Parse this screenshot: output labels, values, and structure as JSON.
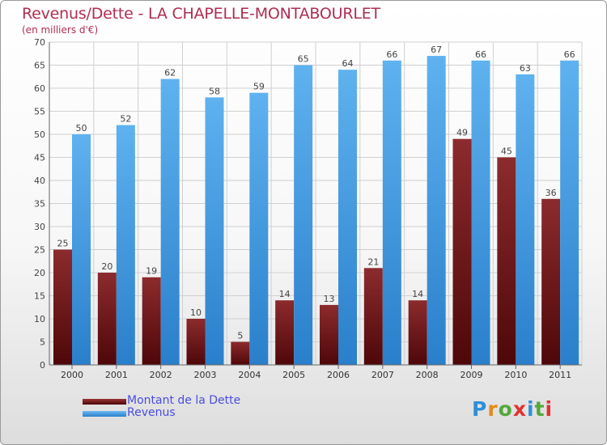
{
  "header": {
    "title": "Revenus/Dette - LA CHAPELLE-MONTABOURLET",
    "subtitle": "(en milliers d'€)"
  },
  "legend": {
    "items": [
      {
        "label": "Montant de la Dette",
        "color": "#7a1517"
      },
      {
        "label": "Revenus",
        "color": "#3f9de6"
      }
    ]
  },
  "logo": {
    "text": "Proxiti"
  },
  "chart_data": {
    "type": "bar",
    "categories": [
      "2000",
      "2001",
      "2002",
      "2003",
      "2004",
      "2005",
      "2006",
      "2007",
      "2008",
      "2009",
      "2010",
      "2011"
    ],
    "series": [
      {
        "name": "Montant de la Dette",
        "color": "#7a1517",
        "values": [
          25,
          20,
          19,
          10,
          5,
          14,
          13,
          21,
          14,
          49,
          45,
          36
        ]
      },
      {
        "name": "Revenus",
        "color": "#3f9de6",
        "values": [
          50,
          52,
          62,
          58,
          59,
          65,
          64,
          66,
          67,
          66,
          63,
          66
        ]
      }
    ],
    "title": "Revenus/Dette - LA CHAPELLE-MONTABOURLET",
    "subtitle": "(en milliers d'€)",
    "ylim": [
      0,
      70
    ],
    "yticks": [
      0,
      5,
      10,
      15,
      20,
      25,
      30,
      35,
      40,
      45,
      50,
      55,
      60,
      65,
      70
    ],
    "grid": true,
    "data_labels": true,
    "legend_position": "bottom-left"
  }
}
